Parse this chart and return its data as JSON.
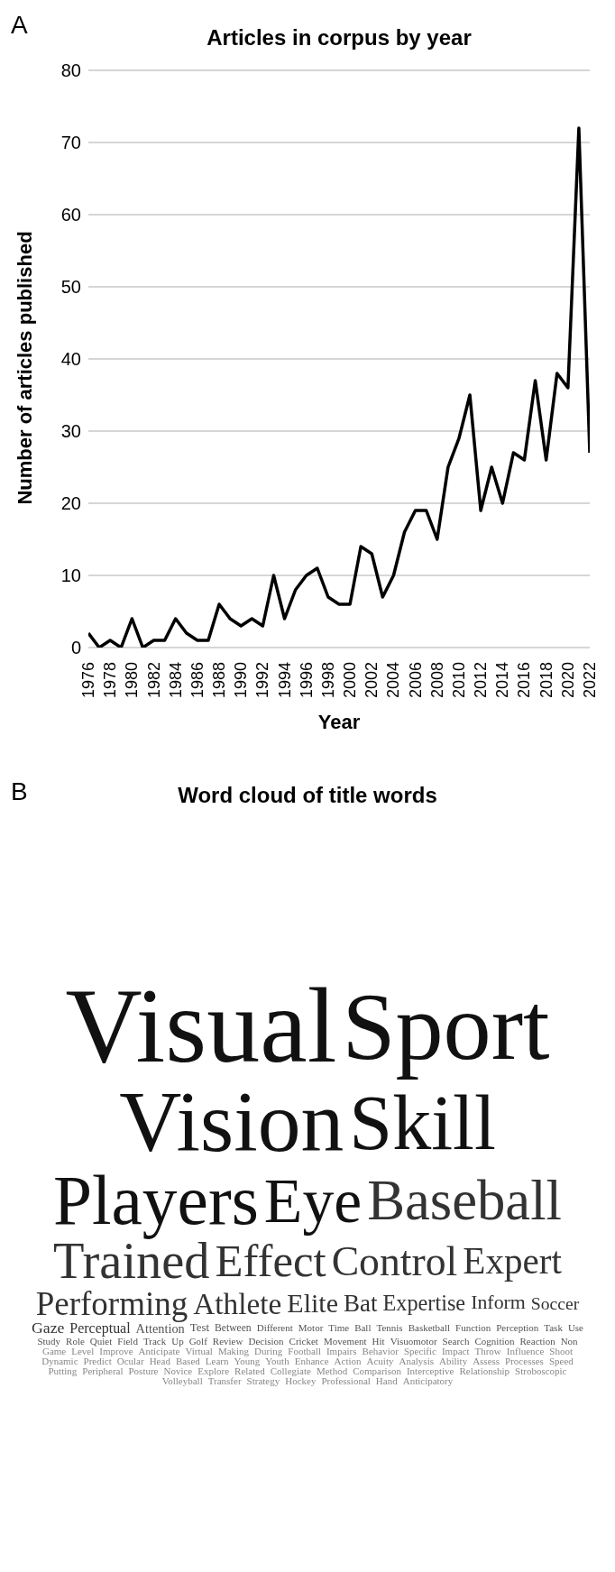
{
  "chart_data": [
    {
      "type": "line",
      "title": "Articles in corpus by year",
      "xlabel": "Year",
      "ylabel": "Number of articles published",
      "annotations": [
        "A"
      ],
      "color": "#000000",
      "marker": "none",
      "line_style": "solid",
      "grid": "y",
      "x": [
        1976,
        1977,
        1978,
        1979,
        1980,
        1981,
        1982,
        1983,
        1984,
        1985,
        1986,
        1987,
        1988,
        1989,
        1990,
        1991,
        1992,
        1993,
        1994,
        1995,
        1996,
        1997,
        1998,
        1999,
        2000,
        2001,
        2002,
        2003,
        2004,
        2005,
        2006,
        2007,
        2008,
        2009,
        2010,
        2011,
        2012,
        2013,
        2014,
        2015,
        2016,
        2017,
        2018,
        2019,
        2020,
        2021,
        2022
      ],
      "values": [
        2,
        0,
        1,
        0,
        4,
        0,
        1,
        1,
        4,
        2,
        1,
        1,
        6,
        4,
        3,
        4,
        3,
        10,
        4,
        8,
        10,
        11,
        7,
        6,
        6,
        14,
        13,
        7,
        10,
        16,
        19,
        19,
        15,
        25,
        29,
        35,
        19,
        25,
        20,
        27,
        26,
        37,
        26,
        38,
        36,
        72,
        27
      ],
      "xlim": [
        1976,
        2022
      ],
      "xticks": [
        1976,
        1978,
        1980,
        1982,
        1984,
        1986,
        1988,
        1990,
        1992,
        1994,
        1996,
        1998,
        2000,
        2002,
        2004,
        2006,
        2008,
        2010,
        2012,
        2014,
        2016,
        2018,
        2020,
        2022
      ],
      "ylim": [
        0,
        80
      ],
      "yticks": [
        0,
        10,
        20,
        30,
        40,
        50,
        60,
        70,
        80
      ]
    },
    {
      "type": "other",
      "title": "Word cloud of title words",
      "annotations": [
        "B",
        "Visual",
        "Sport",
        "Vision",
        "Skill",
        "Players",
        "Eye",
        "Baseball",
        "Trained",
        "Effect",
        "Control",
        "Expert",
        "Performing",
        "Athlete",
        "Elite",
        "Bat",
        "Expertise",
        "Inform",
        "Soccer",
        "Gaze",
        "Perceptual",
        "Attention",
        "Test",
        "Between",
        "Different",
        "Motor",
        "Time",
        "Ball",
        "Tennis",
        "Basketball",
        "Function",
        "Perception",
        "Task",
        "Use",
        "Study",
        "Role",
        "Quiet",
        "Field",
        "Track",
        "Up",
        "Golf",
        "Review",
        "Decision",
        "Cricket",
        "Movement",
        "Hit",
        "Visuomotor",
        "Search",
        "Cognition",
        "Reaction",
        "Non",
        "Game",
        "Level",
        "Improve",
        "Anticipate",
        "Virtual",
        "Making",
        "During",
        "Football",
        "Impairs",
        "Behavior",
        "Specific",
        "Impact",
        "Throw",
        "Influence",
        "Shoot",
        "Dynamic",
        "Predict",
        "Ocular",
        "Head",
        "Based",
        "Learn",
        "Young",
        "Youth",
        "Enhance",
        "Action",
        "Acuity",
        "Analysis",
        "Ability",
        "Assess",
        "Processes",
        "Speed",
        "Putting",
        "Peripheral",
        "Posture",
        "Novice",
        "Explore",
        "Related",
        "Collegiate",
        "Method",
        "Comparison",
        "Interceptive",
        "Relationship",
        "Stroboscopic",
        "Volleyball",
        "Transfer",
        "Strategy",
        "Hockey",
        "Professional",
        "Hand",
        "Anticipatory"
      ]
    }
  ]
}
